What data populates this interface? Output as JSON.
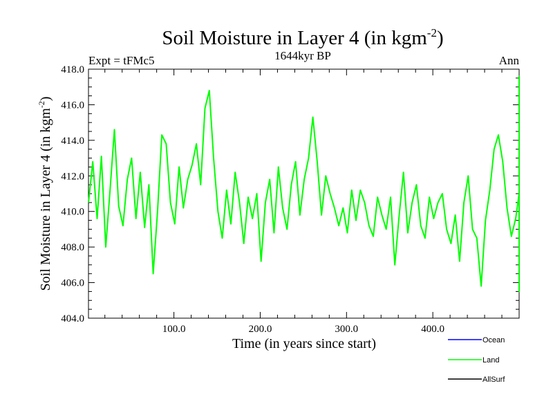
{
  "chart_data": {
    "type": "line",
    "title": "Soil Moisture in Layer 4 (in kgm",
    "title_sup": "-2",
    "title_close": ")",
    "subtitle": "1644kyr BP",
    "left_label": "Expt = tFMc5",
    "right_label": "Ann",
    "xlabel": "Time (in years since start)",
    "ylabel": "Soil Moisture in Layer 4 (in kgm",
    "ylabel_sup": "-2",
    "ylabel_close": ")",
    "xlim": [
      1,
      500
    ],
    "ylim": [
      404.0,
      418.0
    ],
    "x_ticks": [
      100,
      200,
      300,
      400
    ],
    "x_tick_labels": [
      "100.0",
      "200.0",
      "300.0",
      "400.0"
    ],
    "y_ticks": [
      404,
      406,
      408,
      410,
      412,
      414,
      416,
      418
    ],
    "y_tick_labels": [
      "404.0",
      "406.0",
      "408.0",
      "410.0",
      "412.0",
      "414.0",
      "416.0",
      "418.0"
    ],
    "legend": [
      {
        "name": "Ocean",
        "color": "#0000ff"
      },
      {
        "name": "Land",
        "color": "#00ff00"
      },
      {
        "name": "AllSurf",
        "color": "#000000"
      }
    ],
    "series": [
      {
        "name": "Land",
        "color": "#00ff00",
        "x_start": 1,
        "x_step": 5,
        "values": [
          410.5,
          412.8,
          409.6,
          413.1,
          408.0,
          411.2,
          414.6,
          410.3,
          409.2,
          411.8,
          413.0,
          409.6,
          412.2,
          409.1,
          411.5,
          406.5,
          410.0,
          414.3,
          413.8,
          410.5,
          409.3,
          412.5,
          410.2,
          411.8,
          412.6,
          413.8,
          411.5,
          415.8,
          416.8,
          413.0,
          410.0,
          408.5,
          411.2,
          409.3,
          412.2,
          410.5,
          408.2,
          410.8,
          409.6,
          411.0,
          407.2,
          410.5,
          411.8,
          408.8,
          412.5,
          410.2,
          409.0,
          411.5,
          412.8,
          409.8,
          411.8,
          413.0,
          415.3,
          412.8,
          409.8,
          412.0,
          411.0,
          410.2,
          409.2,
          410.2,
          408.8,
          411.2,
          409.5,
          411.2,
          410.5,
          409.2,
          408.6,
          410.8,
          409.8,
          409.0,
          410.8,
          407.0,
          409.8,
          412.2,
          408.8,
          410.5,
          411.5,
          409.2,
          408.5,
          410.8,
          409.6,
          410.5,
          411.0,
          409.0,
          408.2,
          409.8,
          407.2,
          410.5,
          412.0,
          409.0,
          408.5,
          405.8,
          409.5,
          411.2,
          413.5,
          414.3,
          412.8,
          410.2,
          408.6,
          409.6,
          411.0,
          412.8,
          413.2,
          413.6,
          412.5,
          411.2,
          410.0,
          408.8,
          410.2,
          409.0,
          409.6,
          410.5,
          409.3,
          409.5,
          410.0,
          409.0,
          411.5,
          412.5,
          410.8,
          408.8,
          406.2,
          410.5,
          412.5,
          410.2,
          409.5,
          411.2,
          410.8,
          409.6,
          411.0,
          409.8,
          410.5,
          410.2,
          407.5,
          409.2,
          409.0,
          407.8,
          406.8,
          409.6,
          408.5,
          405.5,
          407.2,
          410.5,
          411.8,
          409.0,
          408.2,
          409.5,
          413.2,
          414.3,
          411.5,
          410.2,
          409.5,
          411.0,
          409.8,
          410.6,
          408.6,
          411.5,
          412.8,
          411.8,
          410.5,
          412.2,
          411.2,
          409.2,
          411.8,
          412.5,
          411.2,
          413.0,
          413.8,
          412.6,
          413.2,
          412.5,
          411.8,
          412.5,
          413.6,
          412.8,
          413.4,
          412.0,
          410.5,
          411.8,
          412.5,
          412.0,
          409.5,
          411.0,
          410.0,
          412.4,
          413.2,
          410.0,
          411.5,
          409.5,
          408.2,
          410.0,
          409.0,
          410.5,
          409.8,
          411.0,
          410.5,
          410.2,
          411.2,
          411.0,
          409.5,
          410.0,
          409.8,
          408.5,
          410.2,
          410.0,
          411.0,
          409.2,
          412.5,
          412.0,
          410.0,
          409.5,
          408.6,
          411.0,
          411.6,
          409.8,
          409.8,
          410.8,
          409.5,
          410.8,
          412.0,
          408.8,
          410.2,
          409.5,
          409.0,
          411.0,
          410.0,
          408.8,
          409.2,
          410.8,
          410.5,
          411.5,
          413.5,
          409.5,
          412.2,
          415.0,
          417.6,
          413.5,
          409.2,
          410.0,
          408.5,
          410.0,
          410.5,
          410.2,
          408.2,
          411.0,
          409.2,
          410.8,
          407.2,
          410.0,
          409.6,
          408.6,
          410.8,
          409.0,
          410.5
        ]
      }
    ]
  }
}
